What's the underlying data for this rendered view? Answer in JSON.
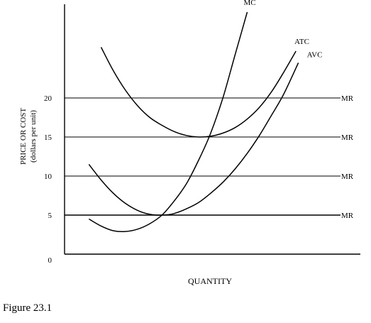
{
  "caption": "Figure 23.1",
  "chart_data": {
    "type": "line",
    "xlabel": "QUANTITY",
    "ylabel": "PRICE OR COST\n(dollars per unit)",
    "xlim": [
      0,
      12
    ],
    "ylim": [
      0,
      32
    ],
    "x_ticks": [],
    "y_ticks": [
      {
        "value": 0,
        "label": "0"
      },
      {
        "value": 5,
        "label": "5"
      },
      {
        "value": 10,
        "label": "10"
      },
      {
        "value": 15,
        "label": "15"
      },
      {
        "value": 20,
        "label": "20"
      }
    ],
    "grid": false,
    "legend": "none (curves labeled directly)",
    "series": [
      {
        "name": "MC",
        "color": "#000000",
        "x": [
          1.0,
          1.5,
          2.0,
          2.5,
          3.0,
          3.5,
          4.0,
          4.5,
          5.0,
          5.5,
          6.0,
          6.5,
          7.0,
          7.5
        ],
        "y": [
          4.5,
          3.6,
          3.0,
          2.9,
          3.2,
          3.9,
          5.0,
          6.8,
          9.0,
          12.0,
          15.5,
          20.0,
          25.5,
          31.0
        ]
      },
      {
        "name": "ATC",
        "color": "#000000",
        "x": [
          1.5,
          2.0,
          2.5,
          3.0,
          3.5,
          4.0,
          4.5,
          5.0,
          5.5,
          6.0,
          6.5,
          7.0,
          7.5,
          8.0,
          8.5,
          9.0,
          9.5
        ],
        "y": [
          26.5,
          23.5,
          21.0,
          19.0,
          17.5,
          16.5,
          15.7,
          15.2,
          15.0,
          15.1,
          15.5,
          16.2,
          17.3,
          18.8,
          20.8,
          23.3,
          26.0
        ]
      },
      {
        "name": "AVC",
        "color": "#000000",
        "x": [
          1.0,
          1.5,
          2.0,
          2.5,
          3.0,
          3.5,
          4.0,
          4.5,
          5.0,
          5.5,
          6.0,
          6.5,
          7.0,
          7.5,
          8.0,
          8.5,
          9.0,
          9.6
        ],
        "y": [
          11.5,
          9.5,
          7.8,
          6.5,
          5.6,
          5.1,
          5.0,
          5.2,
          5.8,
          6.6,
          7.8,
          9.2,
          10.9,
          12.9,
          15.2,
          17.8,
          20.5,
          24.5
        ]
      }
    ],
    "hlines": [
      {
        "value": 20,
        "label": "MR"
      },
      {
        "value": 15,
        "label": "MR"
      },
      {
        "value": 10,
        "label": "MR"
      },
      {
        "value": 5,
        "label": "MR"
      }
    ]
  }
}
